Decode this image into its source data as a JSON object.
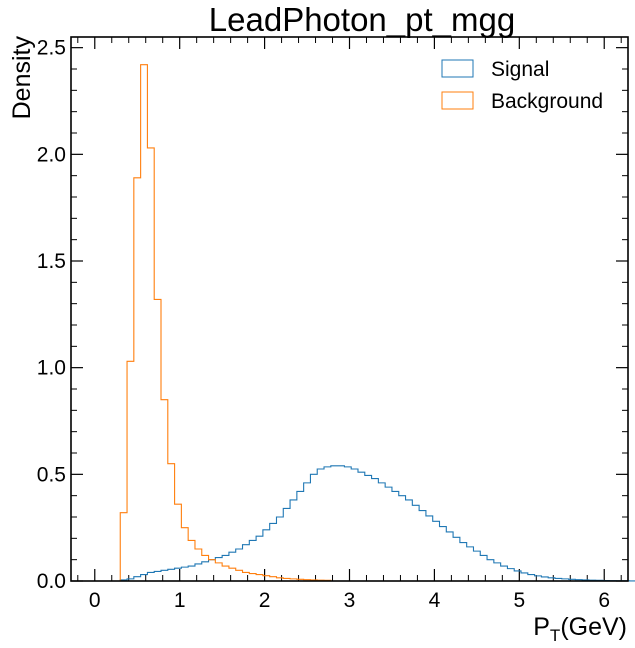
{
  "chart_data": {
    "type": "histogram-step",
    "title": "LeadPhoton_pt_mgg",
    "ylabel": "Density",
    "xlabel_main": "P",
    "xlabel_sub": "T",
    "xlabel_rest": "(GeV)",
    "xlim": [
      -0.28,
      6.28
    ],
    "ylim": [
      0,
      2.55
    ],
    "x_ticks": [
      0,
      1,
      2,
      3,
      4,
      5,
      6
    ],
    "x_tick_labels": [
      "0",
      "1",
      "2",
      "3",
      "4",
      "5",
      "6"
    ],
    "y_ticks": [
      0,
      0.5,
      1.0,
      1.5,
      2.0,
      2.5
    ],
    "y_tick_labels": [
      "0.0",
      "0.5",
      "1.0",
      "1.5",
      "2.0",
      "2.5"
    ],
    "legend_position": "top-right",
    "series": [
      {
        "name": "Signal",
        "color": "#1f77b4",
        "bin_start": 0.3,
        "bin_width": 0.08,
        "values": [
          0.005,
          0.01,
          0.02,
          0.03,
          0.04,
          0.045,
          0.05,
          0.055,
          0.06,
          0.065,
          0.07,
          0.08,
          0.09,
          0.1,
          0.11,
          0.12,
          0.135,
          0.15,
          0.17,
          0.19,
          0.21,
          0.24,
          0.27,
          0.3,
          0.34,
          0.38,
          0.42,
          0.46,
          0.5,
          0.525,
          0.535,
          0.54,
          0.54,
          0.535,
          0.525,
          0.51,
          0.495,
          0.48,
          0.46,
          0.44,
          0.42,
          0.4,
          0.38,
          0.355,
          0.33,
          0.305,
          0.28,
          0.255,
          0.23,
          0.205,
          0.18,
          0.16,
          0.14,
          0.12,
          0.1,
          0.085,
          0.07,
          0.058,
          0.047,
          0.038,
          0.03,
          0.024,
          0.019,
          0.015,
          0.012,
          0.01,
          0.008,
          0.006,
          0.005,
          0.004,
          0.003,
          0.002,
          0.0015,
          0.001,
          0.001,
          0.0005,
          0.0005
        ]
      },
      {
        "name": "Background",
        "color": "#ff7f0e",
        "bin_start": 0.3,
        "bin_width": 0.08,
        "values": [
          0.32,
          1.03,
          1.89,
          2.42,
          2.03,
          1.32,
          0.85,
          0.55,
          0.36,
          0.25,
          0.19,
          0.15,
          0.12,
          0.1,
          0.085,
          0.07,
          0.06,
          0.05,
          0.04,
          0.035,
          0.03,
          0.025,
          0.02,
          0.015,
          0.012,
          0.01,
          0.008,
          0.006,
          0.005,
          0.004,
          0.003
        ]
      }
    ]
  }
}
